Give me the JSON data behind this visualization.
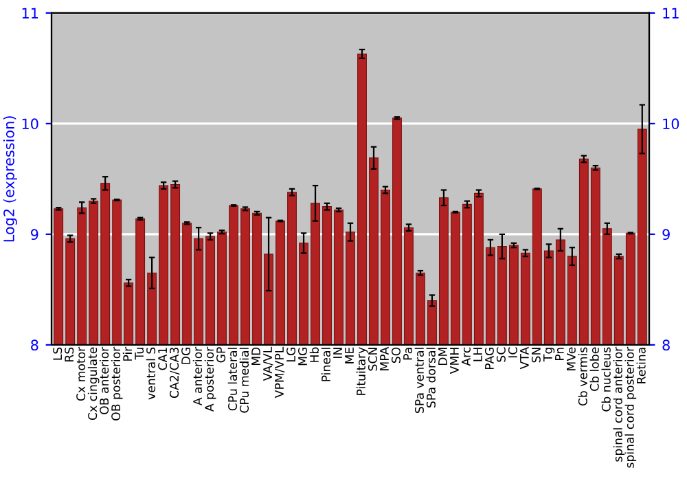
{
  "chart_data": {
    "type": "bar",
    "ylabel": "Log2 (expression)",
    "categories": [
      "LS",
      "RS",
      "Cx motor",
      "Cx cingulate",
      "OB anterior",
      "OB posterior",
      "Pir",
      "Tu",
      "ventral S",
      "CA1",
      "CA2/CA3",
      "DG",
      "A anterior",
      "A posterior",
      "GP",
      "CPu lateral",
      "CPu medial",
      "MD",
      "VA/VL",
      "VPM/VPL",
      "LG",
      "MG",
      "Hb",
      "Pineal",
      "IN",
      "ME",
      "Pituitary",
      "SCN",
      "MPA",
      "SO",
      "Pa",
      "SPa ventral",
      "SPa dorsal",
      "DM",
      "VMH",
      "Arc",
      "LH",
      "PAG",
      "SC",
      "IC",
      "VTA",
      "SN",
      "Tg",
      "Pn",
      "MVe",
      "Cb vermis",
      "Cb lobe",
      "Cb nucleus",
      "spinal cord anterior",
      "spinal cord posterior",
      "Retina"
    ],
    "values": [
      9.23,
      8.96,
      9.24,
      9.3,
      9.46,
      9.31,
      8.56,
      9.14,
      8.65,
      9.44,
      9.45,
      9.1,
      8.96,
      8.98,
      9.02,
      9.26,
      9.23,
      9.19,
      8.82,
      9.12,
      9.38,
      8.92,
      9.28,
      9.25,
      9.22,
      9.02,
      10.63,
      9.69,
      9.4,
      10.05,
      9.06,
      8.65,
      8.4,
      9.33,
      9.2,
      9.27,
      9.37,
      8.88,
      8.89,
      8.9,
      8.83,
      9.41,
      8.85,
      8.95,
      8.8,
      9.68,
      9.6,
      9.05,
      8.8,
      9.01,
      9.95
    ],
    "errors": [
      0.01,
      0.03,
      0.05,
      0.02,
      0.06,
      0.005,
      0.03,
      0.01,
      0.14,
      0.03,
      0.03,
      0.01,
      0.1,
      0.03,
      0.015,
      0.005,
      0.015,
      0.015,
      0.33,
      0.005,
      0.03,
      0.09,
      0.16,
      0.03,
      0.015,
      0.08,
      0.04,
      0.1,
      0.03,
      0.01,
      0.03,
      0.02,
      0.05,
      0.07,
      0.005,
      0.03,
      0.03,
      0.07,
      0.11,
      0.02,
      0.03,
      0.005,
      0.06,
      0.1,
      0.08,
      0.03,
      0.02,
      0.05,
      0.02,
      0.005,
      0.22
    ],
    "color": "#b22222",
    "ylim": [
      8,
      11
    ],
    "yticks": [
      8,
      9,
      10,
      11
    ],
    "y2lim": [
      8,
      11
    ],
    "y2ticks": [
      8,
      9,
      10,
      11
    ],
    "grid": "y"
  }
}
